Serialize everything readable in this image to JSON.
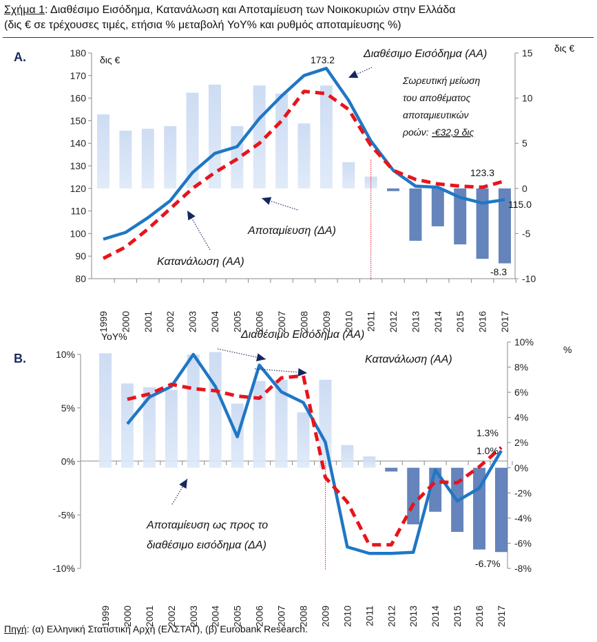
{
  "title": {
    "label": "Σχήμα 1",
    "text": ": Διαθέσιμο Εισόδημα, Κατανάλωση και Αποταμίευση των Νοικοκυριών στην Ελλάδα",
    "line2": "(δις € σε τρέχουσες τιμές, ετήσια % μεταβολή YoY% και ρυθμός αποταμίευσης %)"
  },
  "source": {
    "label": "Πηγή",
    "text": ": (α) Ελληνική Στατιστική Αρχή (ΕΛΣΤΑΤ), (β) Eurobank Research."
  },
  "colors": {
    "income": "#1f77c4",
    "consumption": "#e8141b",
    "bars_pos": "#c4d6f0",
    "bars_neg": "#4a6eb0",
    "marker": "#e8141b"
  },
  "chart_data": [
    {
      "type": "bar+line",
      "panel": "A.",
      "categories": [
        "1999",
        "2000",
        "2001",
        "2002",
        "2003",
        "2004",
        "2005",
        "2006",
        "2007",
        "2008",
        "2009",
        "2010",
        "2011",
        "2012",
        "2013",
        "2014",
        "2015",
        "2016",
        "2017"
      ],
      "ylabel": "δις €",
      "y2label": "δις €",
      "ylim": [
        80,
        180
      ],
      "y2lim": [
        -10,
        15
      ],
      "yticks": [
        "180",
        "170",
        "160",
        "150",
        "140",
        "130",
        "120",
        "110",
        "100",
        "90",
        "80"
      ],
      "y2ticks": [
        "15",
        "10",
        "5",
        "0",
        "-5",
        "-10"
      ],
      "series": [
        {
          "name": "Διαθέσιμο Εισόδημα (ΑΑ)",
          "axis": "left",
          "kind": "line",
          "values": [
            97.5,
            100.5,
            107,
            114.5,
            127,
            135.5,
            138.5,
            151,
            161,
            170,
            173.2,
            159,
            141,
            128,
            121,
            120.5,
            116,
            113.5,
            115.0
          ]
        },
        {
          "name": "Κατανάλωση (ΑΑ)",
          "axis": "left",
          "kind": "dashed",
          "values": [
            89,
            94,
            102,
            111,
            120,
            127,
            133,
            140,
            150,
            163,
            162,
            155,
            139,
            128,
            124,
            122,
            121,
            120.5,
            123.3
          ]
        },
        {
          "name": "Αποταμίευση (ΔΑ)",
          "axis": "right",
          "kind": "bar",
          "values": [
            8.2,
            6.4,
            6.6,
            6.9,
            10.6,
            11.5,
            6.9,
            11.4,
            10.5,
            7.2,
            11.4,
            2.9,
            1.3,
            -0.3,
            -5.8,
            -4.2,
            -6.2,
            -7.8,
            -8.3
          ]
        }
      ],
      "labels": {
        "peak": "173.2",
        "cons_end": "123.3",
        "inc_end": "115.0",
        "sav_end": "-8.3"
      },
      "annotations": {
        "note1": "Σωρευτική μείωση",
        "note2": "του αποθέματος",
        "note3": "αποταμιευτικών",
        "note4": "ροών: ",
        "note5": "-€32,9 δις"
      },
      "marker_year": "2011"
    },
    {
      "type": "bar+line",
      "panel": "B.",
      "categories": [
        "1999",
        "2000",
        "2001",
        "2002",
        "2003",
        "2004",
        "2005",
        "2006",
        "2007",
        "2008",
        "2009",
        "2010",
        "2011",
        "2012",
        "2013",
        "2014",
        "2015",
        "2016",
        "2017"
      ],
      "ylabel": "YoY%",
      "y2label": "%",
      "ylim": [
        -10,
        10
      ],
      "y2lim": [
        -8,
        10
      ],
      "yticks": [
        "10%",
        "5%",
        "0%",
        "-5%",
        "-10%"
      ],
      "y2ticks": [
        "10%",
        "8%",
        "6%",
        "4%",
        "2%",
        "0%",
        "-2%",
        "-4%",
        "-6%",
        "-8%"
      ],
      "series": [
        {
          "name": "Διαθέσιμο Εισόδημα (ΑΑ)",
          "axis": "left",
          "kind": "line",
          "values": [
            null,
            3.5,
            6,
            7,
            10,
            7,
            2.3,
            9,
            6.5,
            5.5,
            1.8,
            -8,
            -8.6,
            -8.6,
            -8.5,
            -0.8,
            -3.7,
            -2.5,
            1.0
          ]
        },
        {
          "name": "Κατανάλωση (ΑΑ)",
          "axis": "left",
          "kind": "dashed",
          "values": [
            null,
            5.8,
            6.3,
            7.2,
            6.8,
            6.6,
            6.1,
            5.9,
            7.8,
            8.0,
            -1.5,
            -3.8,
            -7.8,
            -7.8,
            -4.0,
            -1.9,
            -2.0,
            -0.5,
            1.3
          ]
        },
        {
          "name": "Αποταμίευση ως προς το διαθέσιμο εισόδημα (ΔΑ)",
          "axis": "right",
          "kind": "bar",
          "values": [
            9.1,
            6.7,
            6.4,
            6.2,
            9.0,
            9.2,
            5.1,
            6.9,
            7.0,
            4.4,
            7.0,
            1.8,
            0.9,
            -0.3,
            -4.5,
            -3.5,
            -5.1,
            -6.5,
            -6.7
          ]
        }
      ],
      "labels": {
        "cons_end": "1.3%",
        "inc_end": "1.0%",
        "sav_end": "-6.7%"
      },
      "annotations": {
        "sav1": "Αποταμίευση ως προς το",
        "sav2": "διαθέσιμο εισόδημα (ΔΑ)"
      },
      "marker_year": "2009"
    }
  ]
}
